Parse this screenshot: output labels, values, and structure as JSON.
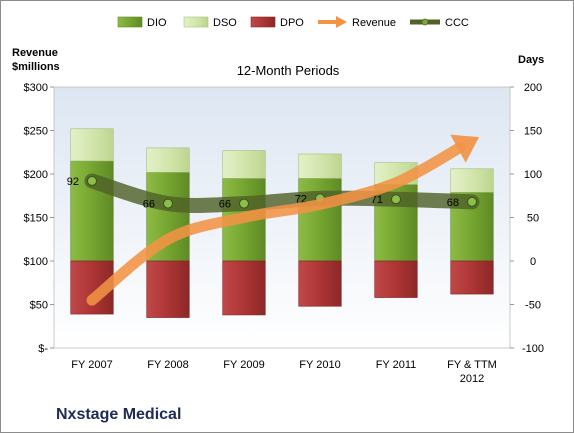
{
  "chart_data": {
    "type": "bar",
    "title": "12-Month Periods",
    "company": "Nxstage Medical",
    "left_axis_label": "Revenue\n$millions",
    "right_axis_label": "Days",
    "categories": [
      "FY 2007",
      "FY 2008",
      "FY 2009",
      "FY 2010",
      "FY 2011",
      "FY & TTM\n2012"
    ],
    "left_axis": {
      "ylim": [
        0,
        300
      ],
      "ticks": [
        0,
        50,
        100,
        150,
        200,
        250,
        300
      ],
      "tick_labels": [
        "$-",
        "$50",
        "$100",
        "$150",
        "$200",
        "$250",
        "$300"
      ]
    },
    "right_axis": {
      "ylim": [
        -100,
        200
      ],
      "ticks": [
        -100,
        -50,
        0,
        50,
        100,
        150,
        200
      ],
      "tick_labels": [
        "-100",
        "-50",
        "0",
        "50",
        "100",
        "150",
        "200"
      ]
    },
    "legend_placement": "top",
    "series": [
      {
        "name": "DIO",
        "kind": "stacked-bar",
        "axis": "right",
        "color": "#7aa83a",
        "values": [
          115,
          102,
          95,
          95,
          88,
          79
        ]
      },
      {
        "name": "DSO",
        "kind": "stacked-bar",
        "axis": "right",
        "color": "#d6e8b0",
        "values": [
          37,
          28,
          32,
          28,
          25,
          27
        ]
      },
      {
        "name": "DPO",
        "kind": "bar-negative",
        "axis": "right",
        "color": "#b33a3a",
        "values": [
          -61,
          -65,
          -62,
          -52,
          -42,
          -38
        ]
      },
      {
        "name": "Revenue",
        "kind": "arrow-line",
        "axis": "left",
        "color": "#f39344",
        "values": [
          55,
          125,
          150,
          165,
          190,
          238
        ]
      },
      {
        "name": "CCC",
        "kind": "line",
        "axis": "right",
        "color": "#4f6228",
        "values": [
          92,
          66,
          66,
          72,
          71,
          68
        ]
      }
    ],
    "data_labels": [
      "92",
      "66",
      "66",
      "72",
      "71",
      "68"
    ]
  }
}
